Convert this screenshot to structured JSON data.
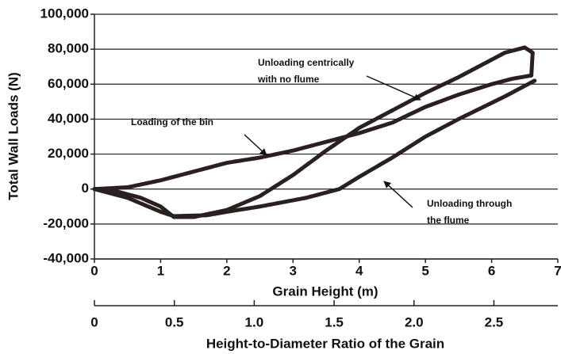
{
  "chart_data": {
    "type": "line",
    "xlabel": "Grain Height (m)",
    "ylabel": "Total Wall Loads (N)",
    "x2label": "Height-to-Diameter Ratio of the Grain",
    "xlim": [
      0,
      7
    ],
    "xticks": [
      0,
      1,
      2,
      3,
      4,
      5,
      6,
      7
    ],
    "ylim": [
      -40000,
      100000
    ],
    "yticks": [
      {
        "value": -40000,
        "label": "-40,000"
      },
      {
        "value": -20000,
        "label": "-20,000"
      },
      0,
      {
        "value": 20000,
        "label": "20,000"
      },
      {
        "value": 40000,
        "label": "40,000"
      },
      {
        "value": 60000,
        "label": "60,000"
      },
      {
        "value": 80000,
        "label": "80,000"
      },
      {
        "value": 100000,
        "label": "100,000"
      }
    ],
    "x2lim": [
      0,
      2.9
    ],
    "x2ticks": [
      0,
      0.5,
      {
        "value": 1,
        "label": "1.0"
      },
      1.5,
      {
        "value": 2,
        "label": "2.0"
      },
      2.5
    ],
    "grid": true,
    "annotations": [
      [
        "Unloading centrically",
        "with no flume"
      ],
      [
        "Loading of the bin"
      ],
      [
        "Unloading through",
        "the flume"
      ]
    ],
    "series": [
      {
        "color": "#2a2020",
        "x": [
          0,
          0.5,
          1,
          1.5,
          2,
          2.5,
          3,
          3.5,
          4,
          4.5,
          5,
          5.5,
          6,
          6.3,
          6.6
        ],
        "values": [
          0,
          1000,
          5000,
          10000,
          15000,
          18000,
          22000,
          27000,
          32000,
          38000,
          47000,
          54000,
          60000,
          63000,
          65000
        ]
      },
      {
        "color": "#2a2020",
        "x": [
          6.6,
          6.62,
          6.5,
          6.2,
          6,
          5.5,
          5,
          4.5,
          4,
          3.5,
          3,
          2.5,
          2,
          1.5,
          1.2,
          1,
          0.7,
          0.3,
          0
        ],
        "values": [
          65000,
          78000,
          81000,
          78000,
          74000,
          64000,
          55000,
          45000,
          35000,
          22000,
          8000,
          -4000,
          -12000,
          -16000,
          -16000,
          -10000,
          -5000,
          -1000,
          0
        ]
      },
      {
        "color": "#2a2020",
        "x": [
          6.65,
          6.2,
          5.5,
          5,
          4.5,
          4,
          3.7,
          3.2,
          2.5,
          2,
          1.7,
          1.2,
          1,
          0.5,
          0
        ],
        "values": [
          62000,
          53000,
          40000,
          30000,
          18000,
          7000,
          0,
          -5000,
          -10000,
          -13000,
          -15000,
          -15500,
          -13000,
          -5000,
          0
        ]
      }
    ]
  }
}
